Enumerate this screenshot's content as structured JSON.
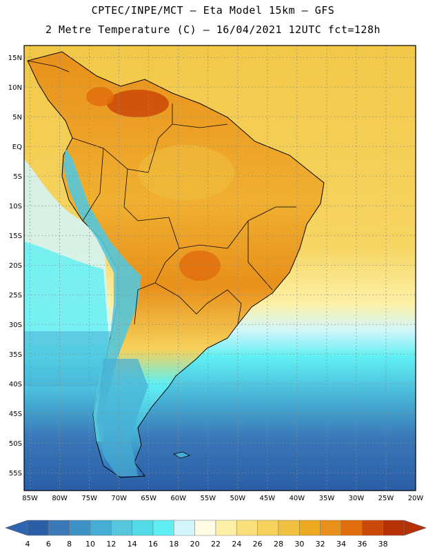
{
  "header": {
    "line1": "CPTEC/INPE/MCT –   Eta Model 15km – GFS",
    "line2": "2 Metre Temperature (C) – 16/04/2021 12UTC fct=128h"
  },
  "axes": {
    "lat_labels": [
      "15N",
      "10N",
      "5N",
      "EQ",
      "5S",
      "10S",
      "15S",
      "20S",
      "25S",
      "30S",
      "35S",
      "40S",
      "45S",
      "50S",
      "55S"
    ],
    "lon_labels": [
      "85W",
      "80W",
      "75W",
      "70W",
      "65W",
      "60W",
      "55W",
      "50W",
      "45W",
      "40W",
      "35W",
      "30W",
      "25W",
      "20W"
    ]
  },
  "colorbar": {
    "ticks": [
      "4",
      "6",
      "8",
      "10",
      "12",
      "14",
      "16",
      "18",
      "20",
      "22",
      "24",
      "26",
      "28",
      "30",
      "32",
      "34",
      "36",
      "38"
    ],
    "colors": [
      "#2a5ea6",
      "#3a78b8",
      "#3e92c6",
      "#46aed4",
      "#55c6dc",
      "#52dbe6",
      "#5feff3",
      "#d2f6fb",
      "#fffbe4",
      "#fdf0a6",
      "#f9e07a",
      "#f6d25c",
      "#f0c040",
      "#edaa20",
      "#e8901a",
      "#e06e0e",
      "#cc4808",
      "#b63206"
    ],
    "low_arrow_color": "#2f64b0",
    "high_arrow_color": "#b83006"
  },
  "map": {
    "ocean_colors": {
      "tropical": "#f6d562",
      "subtropical": "#fdf0a6",
      "cool": "#d2f6fb",
      "cold": "#52dbe6",
      "frigid": "#2a5ea6"
    },
    "land_colors": {
      "hot": "#cc4808",
      "warm": "#e8901a",
      "mild": "#f0c040",
      "cool": "#55c6dc",
      "cold": "#2f68b4"
    }
  }
}
